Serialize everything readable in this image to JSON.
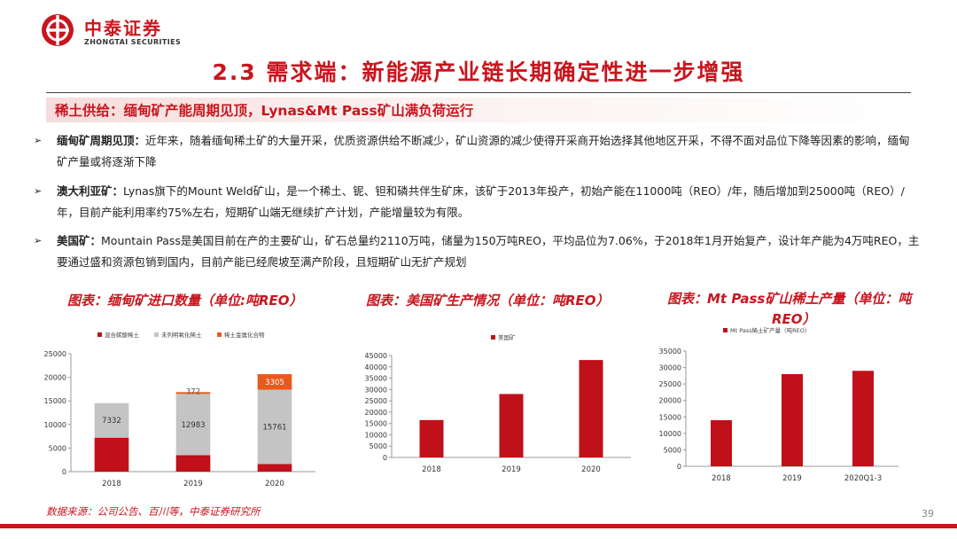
{
  "brand": {
    "name_cn": "中泰证券",
    "name_en": "ZHONGTAI SECURITIES",
    "color": "#c8161e"
  },
  "page_title": "2.3 需求端：新能源产业链长期确定性进一步增强",
  "subheading": "稀土供给：缅甸矿产能周期见顶，Lynas&Mt Pass矿山满负荷运行",
  "bullets": [
    {
      "lead": "缅甸矿周期见顶：",
      "text": "近年来，随着缅甸稀土矿的大量开采，优质资源供给不断减少，矿山资源的减少使得开采商开始选择其他地区开采，不得不面对品位下降等因素的影响，缅甸矿产量或将逐渐下降"
    },
    {
      "lead": "澳大利亚矿：",
      "text": "Lynas旗下的Mount Weld矿山，是一个稀土、铌、钽和磷共伴生矿床，该矿于2013年投产，初始产能在11000吨（REO）/年，随后增加到25000吨（REO）/年，目前产能利用率约75%左右，短期矿山端无继续扩产计划，产能增量较为有限。"
    },
    {
      "lead": "美国矿：",
      "text": "Mountain Pass是美国目前在产的主要矿山，矿石总量约2110万吨，储量为150万吨REO，平均品位为7.06%，于2018年1月开始复产，设计年产能为4万吨REO，主要通过盛和资源包销到国内，目前产能已经爬坡至满产阶段，且短期矿山无扩产规划"
    }
  ],
  "chart_data": [
    {
      "type": "bar",
      "stacked": true,
      "title": "图表：缅甸矿进口数量（单位:吨REO）",
      "categories": [
        "2018",
        "2019",
        "2020"
      ],
      "series": [
        {
          "name": "混合碳酸稀土",
          "values": [
            7200,
            3500,
            1600
          ],
          "color": "#c0101a"
        },
        {
          "name": "未列明氧化稀土",
          "values": [
            7332,
            12983,
            15761
          ],
          "color": "#c4c4c4"
        },
        {
          "name": "稀土金属化合物",
          "values": [
            0,
            372,
            3305
          ],
          "color": "#e85a1c"
        }
      ],
      "data_labels": [
        {
          "series": 1,
          "index": 0,
          "text": "7332"
        },
        {
          "series": 1,
          "index": 1,
          "text": "12983"
        },
        {
          "series": 2,
          "index": 1,
          "text": "372"
        },
        {
          "series": 1,
          "index": 2,
          "text": "15761"
        },
        {
          "series": 2,
          "index": 2,
          "text": "3305"
        }
      ],
      "ylim": [
        0,
        25000
      ],
      "yticks": [
        0,
        5000,
        10000,
        15000,
        20000,
        25000
      ],
      "legend": "top"
    },
    {
      "type": "bar",
      "title": "图表：美国矿生产情况（单位：吨REO）",
      "categories": [
        "2018",
        "2019",
        "2020"
      ],
      "series": [
        {
          "name": "美国矿",
          "values": [
            16500,
            28000,
            43000
          ],
          "color": "#c0101a"
        }
      ],
      "ylim": [
        0,
        45000
      ],
      "yticks": [
        0,
        5000,
        10000,
        15000,
        20000,
        25000,
        30000,
        35000,
        40000,
        45000
      ],
      "legend": "top"
    },
    {
      "type": "bar",
      "title": "图表：Mt Pass矿山稀土产量（单位：吨REO）",
      "categories": [
        "2018",
        "2019",
        "2020Q1-3"
      ],
      "series": [
        {
          "name": "Mt Pass稀土矿产量（吨REO）",
          "values": [
            14000,
            28000,
            29000
          ],
          "color": "#c0101a"
        }
      ],
      "ylim": [
        0,
        35000
      ],
      "yticks": [
        0,
        5000,
        10000,
        15000,
        20000,
        25000,
        30000,
        35000
      ],
      "legend": "top"
    }
  ],
  "chart_titles": {
    "c1": "图表：缅甸矿进口数量（单位:吨REO）",
    "c2": "图表：美国矿生产情况（单位：吨REO）",
    "c3a": "图表：Mt Pass矿山稀土产量（单位：吨",
    "c3b": "REO）"
  },
  "source": "数据来源：公司公告、百川等，中泰证券研究所",
  "page_number": "39"
}
